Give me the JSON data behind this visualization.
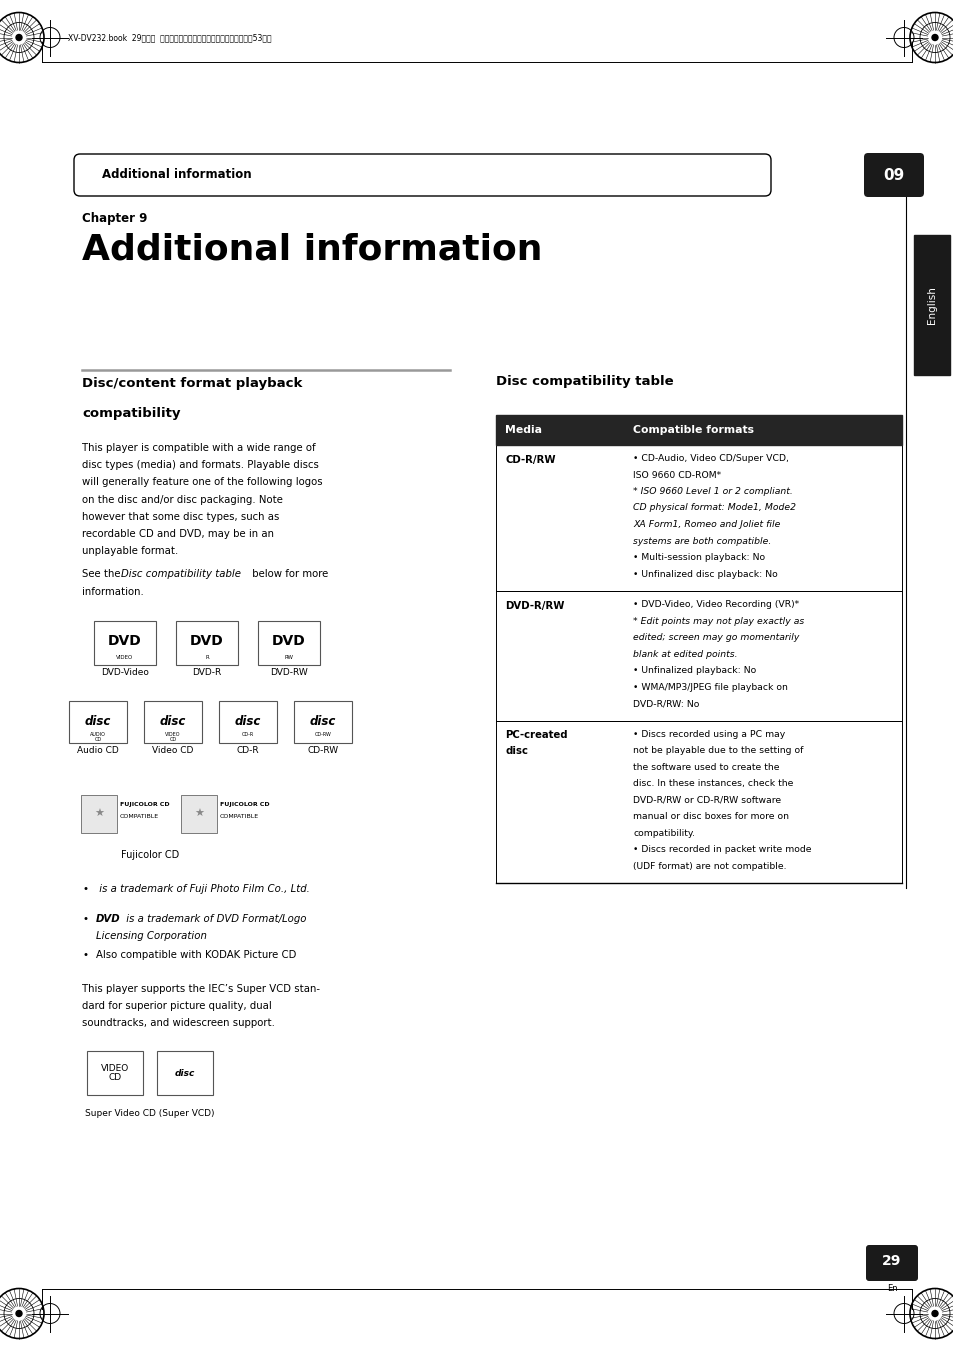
{
  "bg_color": "#ffffff",
  "page_width": 9.54,
  "page_height": 13.51,
  "dpi": 100,
  "header_bar_text": "Additional information",
  "header_number": "09",
  "chapter_label": "Chapter 9",
  "chapter_title": "Additional information",
  "left_section_title_line1": "Disc/content format playback",
  "left_section_title_line2": "compatibility",
  "body_lines": [
    "This player is compatible with a wide range of",
    "disc types (media) and formats. Playable discs",
    "will generally feature one of the following logos",
    "on the disc and/or disc packaging. Note",
    "however that some disc types, such as",
    "recordable CD and DVD, may be in an",
    "unplayable format."
  ],
  "body_line_see_prefix": "See the ",
  "body_line_see_italic": "Disc compatibility table",
  "body_line_see_suffix": " below for more",
  "body_line_info": "information.",
  "dvd_labels": [
    "DVD-Video",
    "DVD-R",
    "DVD-RW"
  ],
  "cd_labels": [
    "Audio CD",
    "Video CD",
    "CD-R",
    "CD-RW"
  ],
  "fujicolor_label": "Fujicolor CD",
  "bullet1_prefix": "",
  "bullet1_text": " is a trademark of Fuji Photo Film Co., Ltd.",
  "bullet2_bold": "DVD",
  "bullet2_text": " is a trademark of DVD Format/Logo",
  "bullet2_text2": "Licensing Corporation",
  "bullet3": "Also compatible with KODAK Picture CD",
  "iec_lines": [
    "This player supports the IEC’s Super VCD stan-",
    "dard for superior picture quality, dual",
    "soundtracks, and widescreen support."
  ],
  "super_vcd_label": "Super Video CD (Super VCD)",
  "right_section_title": "Disc compatibility table",
  "table_header_col1": "Media",
  "table_header_col2": "Compatible formats",
  "row1_media": "CD-R/RW",
  "row1_lines": [
    [
      "• CD-Audio, Video CD/Super VCD,",
      false
    ],
    [
      "ISO 9660 CD-ROM*",
      false
    ],
    [
      "* ISO 9660 Level 1 or 2 compliant.",
      true
    ],
    [
      "CD physical format: Mode1, Mode2",
      true
    ],
    [
      "XA Form1, Romeo and Joliet file",
      true
    ],
    [
      "systems are both compatible.",
      true
    ],
    [
      "• Multi-session playback: No",
      false
    ],
    [
      "• Unfinalized disc playback: No",
      false
    ]
  ],
  "row2_media": "DVD-R/RW",
  "row2_lines": [
    [
      "• DVD-Video, Video Recording (VR)*",
      false
    ],
    [
      "* Edit points may not play exactly as",
      true
    ],
    [
      "edited; screen may go momentarily",
      true
    ],
    [
      "blank at edited points.",
      true
    ],
    [
      "• Unfinalized playback: No",
      false
    ],
    [
      "• WMA/MP3/JPEG file playback on",
      false
    ],
    [
      "DVD-R/RW: No",
      false
    ]
  ],
  "row3_media_line1": "PC-created",
  "row3_media_line2": "disc",
  "row3_lines": [
    [
      "• Discs recorded using a PC may",
      false
    ],
    [
      "not be playable due to the setting of",
      false
    ],
    [
      "the software used to create the",
      false
    ],
    [
      "disc. In these instances, check the",
      false
    ],
    [
      "DVD-R/RW or CD-R/RW software",
      false
    ],
    [
      "manual or disc boxes for more on",
      false
    ],
    [
      "compatibility.",
      false
    ],
    [
      "• Discs recorded in packet write mode",
      false
    ],
    [
      "(UDF format) are not compatible.",
      false
    ]
  ],
  "english_tab_text": "English",
  "page_number": "29",
  "page_sub": "En",
  "japanese_header": "XV-DV232.book  29ページ  ２００４年１２月２４日　金曜日　午後１晉53５分"
}
